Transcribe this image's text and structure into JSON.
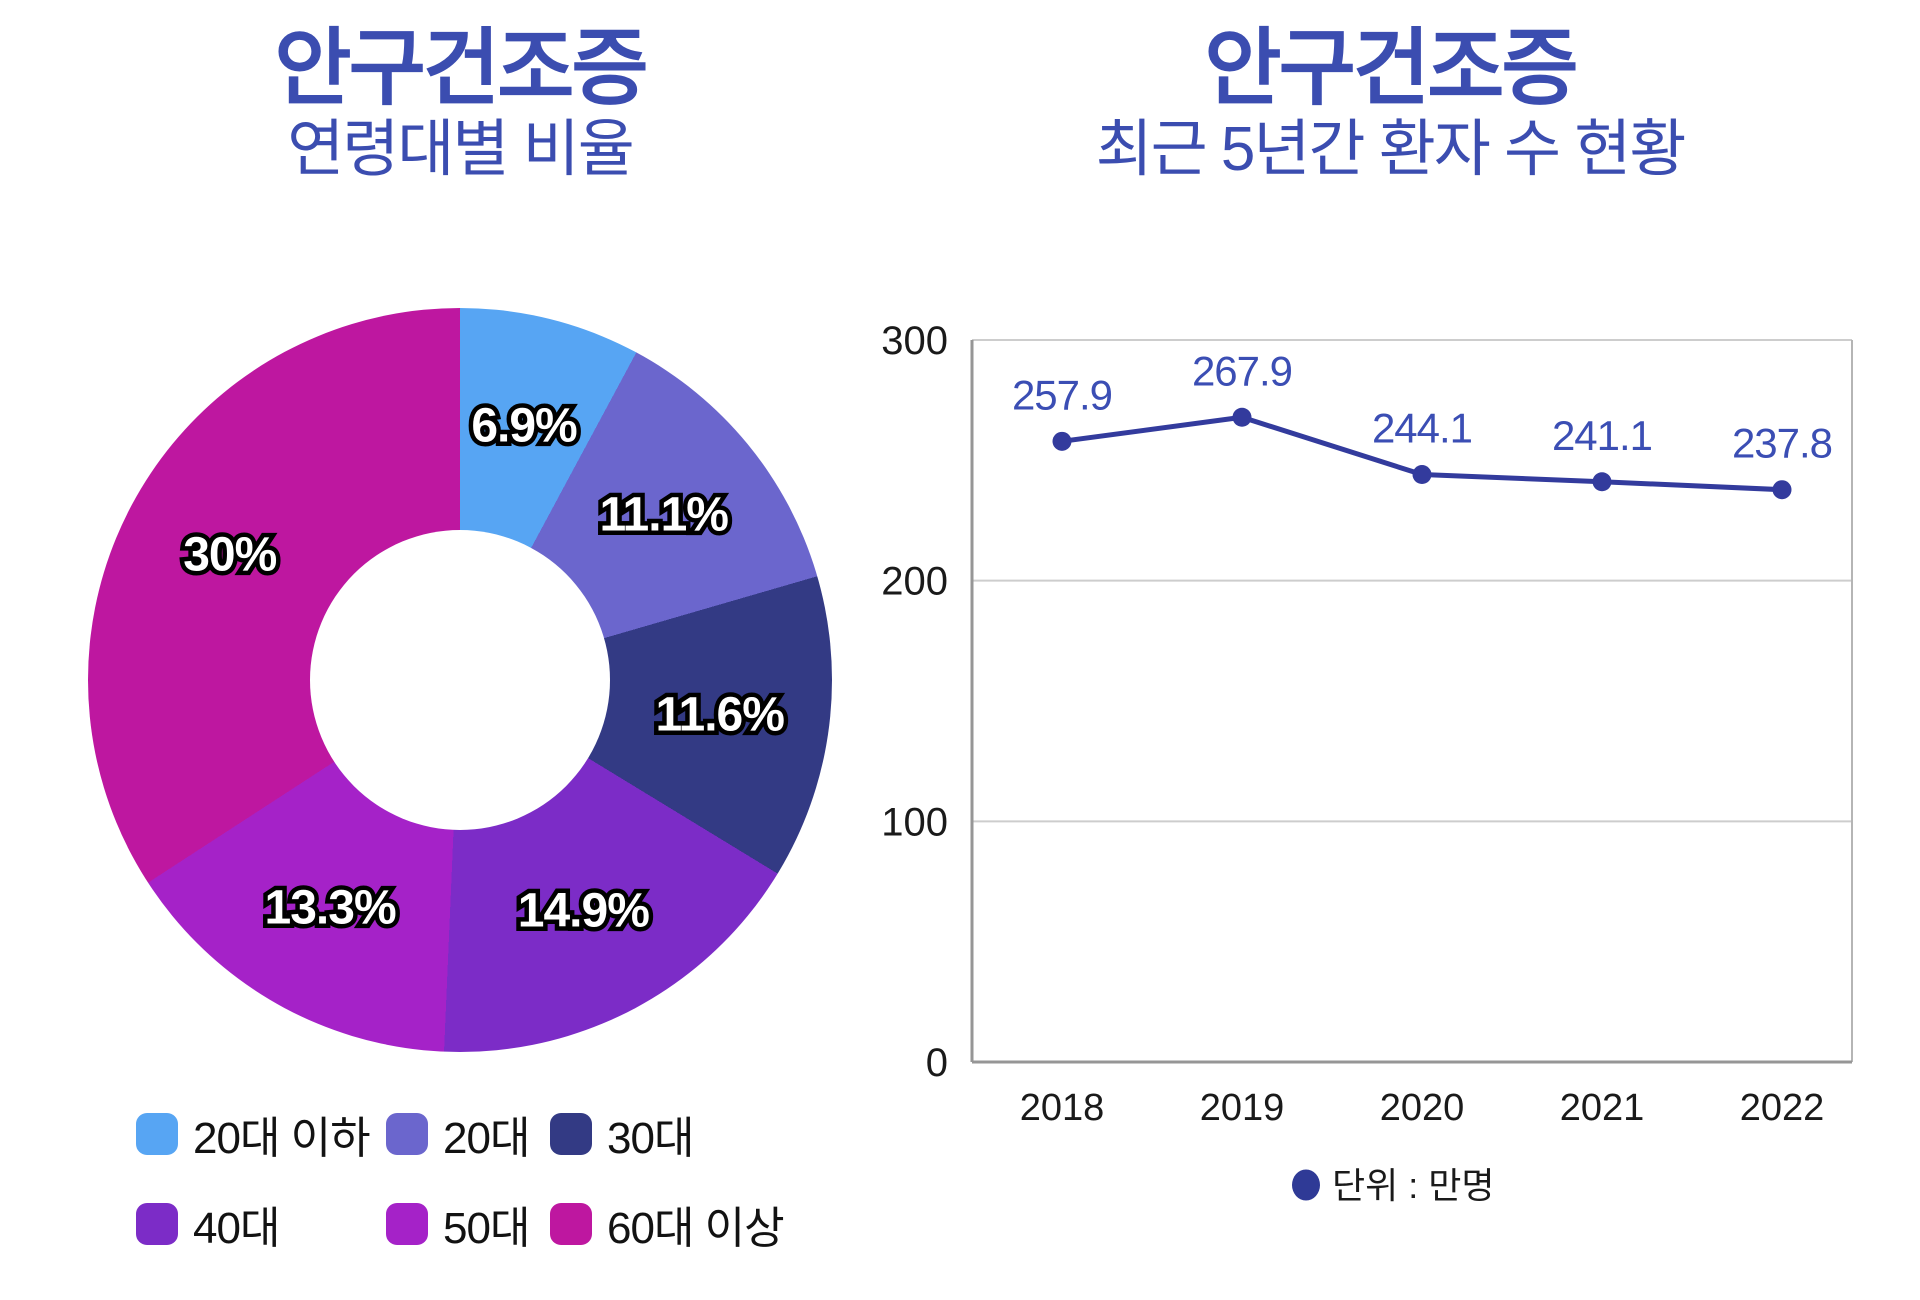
{
  "left_chart": {
    "title": "안구건조증",
    "subtitle": "연령대별 비율"
  },
  "right_chart": {
    "title": "안구건조증",
    "subtitle": "최근 5년간 환자 수 현황",
    "unit_legend": "단위 : 만명",
    "legend_dot_color": "#2F3A96"
  },
  "colors": {
    "title_blue": "#3B4DB0",
    "axis_text": "#1a1a1a",
    "gridline": "#cdcdcd",
    "axis_line": "#969696",
    "plot_right_border": "#b5b5b5"
  },
  "chart_data": [
    {
      "type": "pie",
      "title": "안구건조증 연령대별 비율",
      "labels": [
        "20대 이하",
        "20대",
        "30대",
        "40대",
        "50대",
        "60대 이상"
      ],
      "values": [
        6.9,
        11.1,
        11.6,
        14.9,
        13.3,
        30
      ],
      "value_labels": [
        "6.9%",
        "11.1%",
        "11.6%",
        "14.9%",
        "13.3%",
        "30%"
      ],
      "colors": [
        "#57A5F3",
        "#6B66CD",
        "#333A84",
        "#7C2CC7",
        "#A522C8",
        "#BE17A0"
      ],
      "donut_hole_ratio": 0.4,
      "start_angle_deg": 0,
      "direction": "clockwise",
      "legend_position": "bottom"
    },
    {
      "type": "line",
      "title": "안구건조증 최근 5년간 환자 수 현황",
      "x": [
        "2018",
        "2019",
        "2020",
        "2021",
        "2022"
      ],
      "values": [
        257.9,
        267.9,
        244.1,
        241.1,
        237.8
      ],
      "value_labels": [
        "257.9",
        "267.9",
        "244.1",
        "241.1",
        "237.8"
      ],
      "ylim": [
        0,
        300
      ],
      "yticks": [
        0,
        100,
        200,
        300
      ],
      "grid": true,
      "line_color": "#333B9D",
      "point_color": "#333B9D",
      "label_color": "#3B4EB4",
      "legend": "단위 : 만명",
      "legend_position": "bottom"
    }
  ]
}
